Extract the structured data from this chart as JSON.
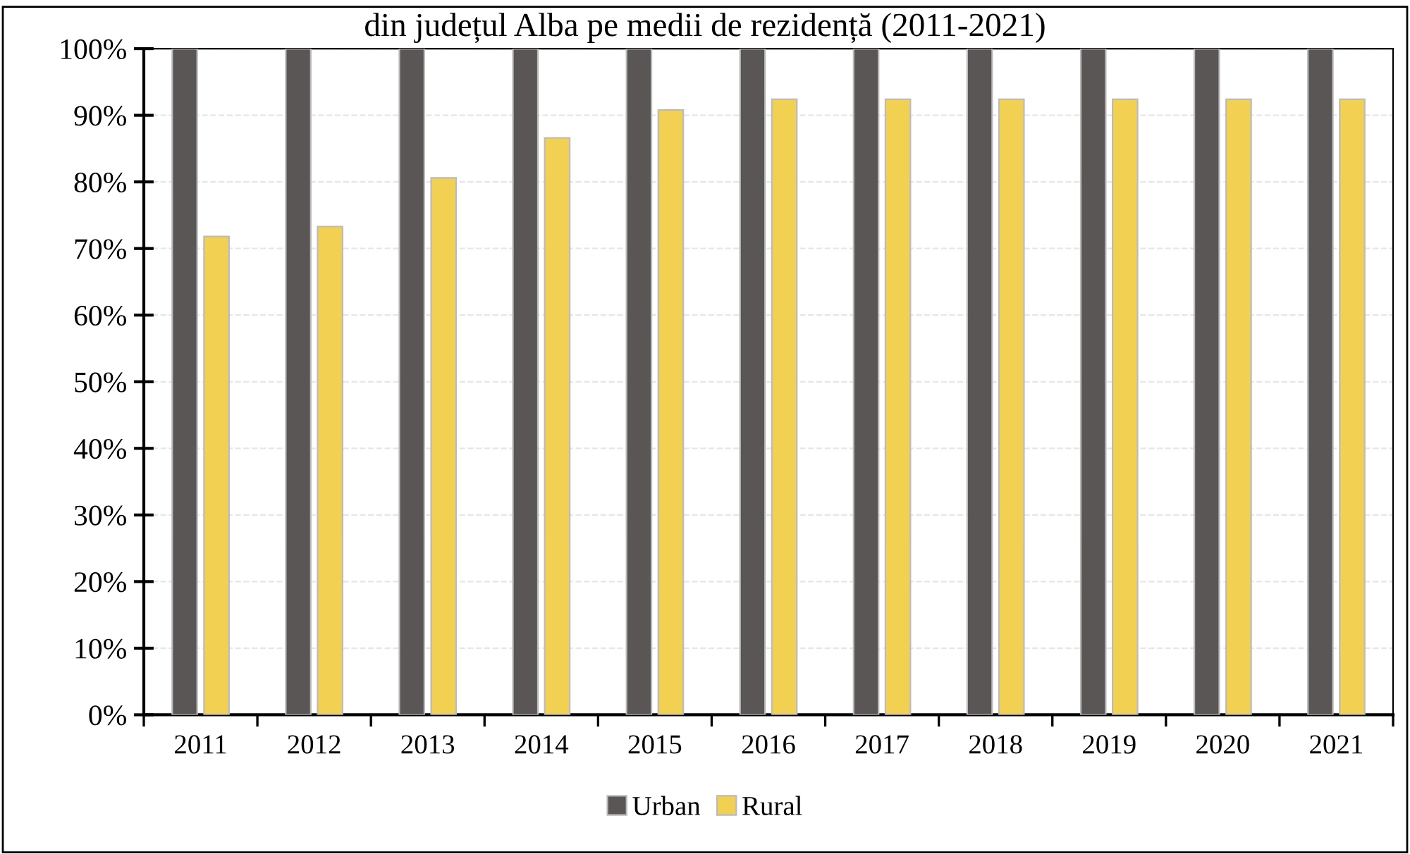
{
  "chart_data": {
    "type": "bar",
    "title": "din județul Alba pe medii de rezidență (2011-2021)",
    "categories": [
      "2011",
      "2012",
      "2013",
      "2014",
      "2015",
      "2016",
      "2017",
      "2018",
      "2019",
      "2020",
      "2021"
    ],
    "series": [
      {
        "name": "Urban",
        "color": "#5a5656",
        "values": [
          100,
          100,
          100,
          100,
          100,
          100,
          100,
          100,
          100,
          100,
          100
        ]
      },
      {
        "name": "Rural",
        "color": "#f2d152",
        "values": [
          71.8,
          73.3,
          80.6,
          86.6,
          90.8,
          92.4,
          92.4,
          92.4,
          92.4,
          92.4,
          92.4
        ]
      }
    ],
    "ylim": [
      0,
      100
    ],
    "yticks": [
      {
        "value": 0,
        "label": "0%"
      },
      {
        "value": 10,
        "label": "10%"
      },
      {
        "value": 20,
        "label": "20%"
      },
      {
        "value": 30,
        "label": "30%"
      },
      {
        "value": 40,
        "label": "40%"
      },
      {
        "value": 50,
        "label": "50%"
      },
      {
        "value": 60,
        "label": "60%"
      },
      {
        "value": 70,
        "label": "70%"
      },
      {
        "value": 80,
        "label": "80%"
      },
      {
        "value": 90,
        "label": "90%"
      },
      {
        "value": 100,
        "label": "100%"
      }
    ],
    "grid": "y",
    "legend": "bottom"
  }
}
